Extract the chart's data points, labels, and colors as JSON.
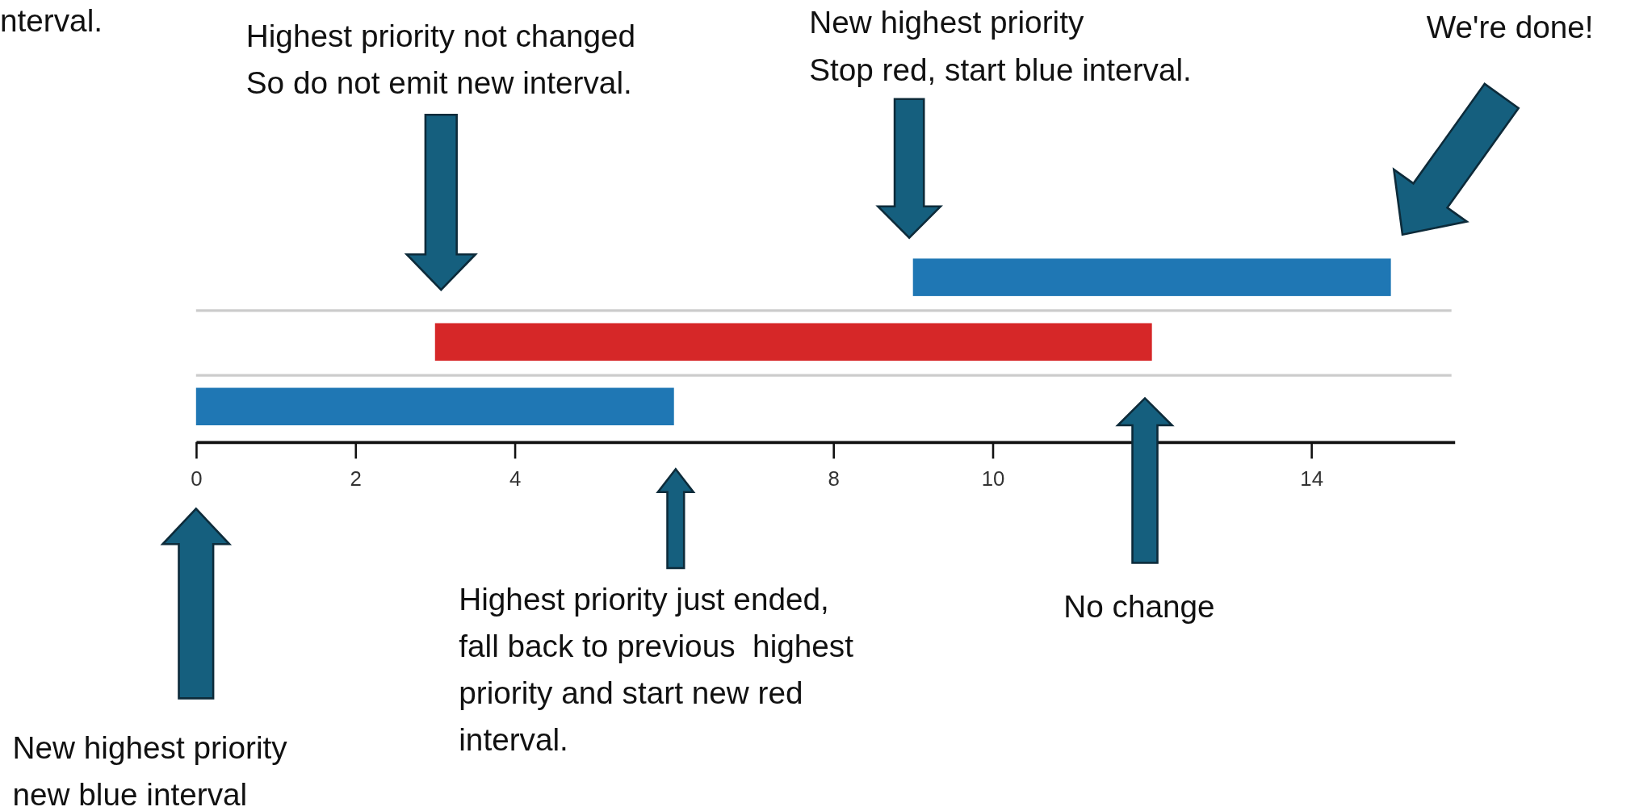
{
  "chart_data": {
    "type": "bar",
    "orientation": "horizontal",
    "categories": [
      null,
      null,
      null
    ],
    "values": [
      6,
      9,
      6
    ],
    "base": [
      9,
      3,
      0
    ],
    "colors": [
      "#1f77b4",
      "#d62728",
      "#1f77b4"
    ],
    "xlim": [
      0,
      15.8
    ],
    "xticks": [
      0,
      2,
      4,
      8,
      10,
      14
    ],
    "tick_labels": "x",
    "grid": "y",
    "annotations": [
      "nterval.",
      "Highest priority not changed\nSo do not emit new interval.",
      "New highest priority\nStop red, start blue interval.",
      "We're done!",
      "Highest priority just ended,\nfall back to previous  highest\npriority and start new red\ninterval.",
      "No change",
      "New highest priority\nnew blue interval"
    ]
  }
}
